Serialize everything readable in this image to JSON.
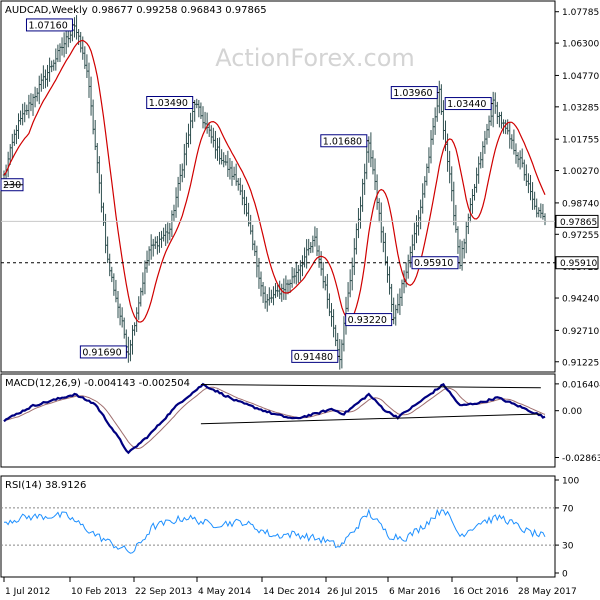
{
  "header": {
    "symbol": "AUDCAD,Weekly",
    "ohlc": "0.98677 0.99258 0.96843 0.97865"
  },
  "watermark": "ActionForex.com",
  "chart_data": [
    {
      "type": "ohlc",
      "title": "AUDCAD,Weekly 0.98677 0.99258 0.96843 0.97865",
      "y_ticks": [
        "1.07785",
        "1.06300",
        "1.04770",
        "1.03285",
        "1.01755",
        "1.00270",
        "0.98740",
        "0.97255",
        "0.95725",
        "0.94240",
        "0.92710",
        "0.91225"
      ],
      "ylim": [
        0.9093,
        1.0815
      ],
      "x_ticks": [
        "1 Jul 2012",
        "10 Feb 2013",
        "22 Sep 2013",
        "4 May 2014",
        "14 Dec 2014",
        "26 Jul 2015",
        "6 Mar 2016",
        "16 Oct 2016",
        "28 May 2017"
      ],
      "n_bars": 262,
      "anchors": [
        [
          0,
          1.0
        ],
        [
          6,
          1.023
        ],
        [
          18,
          1.044
        ],
        [
          34,
          1.0716
        ],
        [
          40,
          1.05
        ],
        [
          50,
          0.96
        ],
        [
          60,
          0.9169
        ],
        [
          70,
          0.965
        ],
        [
          80,
          0.975
        ],
        [
          92,
          1.0349
        ],
        [
          104,
          1.01
        ],
        [
          114,
          0.995
        ],
        [
          126,
          0.94
        ],
        [
          138,
          0.95
        ],
        [
          150,
          0.97
        ],
        [
          162,
          0.9148
        ],
        [
          176,
          1.0168
        ],
        [
          188,
          0.9322
        ],
        [
          200,
          0.98
        ],
        [
          210,
          1.0396
        ],
        [
          220,
          0.9591
        ],
        [
          228,
          1.0
        ],
        [
          236,
          1.0344
        ],
        [
          250,
          1.005
        ],
        [
          256,
          0.985
        ],
        [
          261,
          0.97865
        ]
      ],
      "moving_average": {
        "color": "#d00000"
      },
      "current_price": {
        "value": 0.97865,
        "label": "0.97865"
      },
      "support_line": {
        "value": 0.9591,
        "label": "0.95910",
        "style": "dashed"
      },
      "price_annotations": [
        {
          "label": "1.07160",
          "bar": 34,
          "value": 1.0716,
          "pos": "left"
        },
        {
          "label": "1.03490",
          "bar": 92,
          "value": 1.0349,
          "pos": "left"
        },
        {
          "label": "1.01680",
          "bar": 176,
          "value": 1.0168,
          "pos": "left"
        },
        {
          "label": "1.03960",
          "bar": 210,
          "value": 1.0396,
          "pos": "left"
        },
        {
          "label": "1.03440",
          "bar": 236,
          "value": 1.0344,
          "pos": "left"
        },
        {
          "label": "0.91690",
          "bar": 60,
          "value": 0.9169,
          "pos": "left"
        },
        {
          "label": "0.91480",
          "bar": 162,
          "value": 0.9148,
          "pos": "left"
        },
        {
          "label": "0.93220",
          "bar": 188,
          "value": 0.9322,
          "pos": "left"
        },
        {
          "label": "0.95910",
          "bar": 220,
          "value": 0.9591,
          "pos": "left"
        },
        {
          "label": "230",
          "bar": 0,
          "value": 0.996,
          "pos": "edge"
        }
      ]
    },
    {
      "type": "line",
      "title": "MACD(12,26,9) -0.004143 -0.002504",
      "y_ticks": [
        "0.016404",
        "0.00",
        "-0.028636"
      ],
      "ylim": [
        -0.032,
        0.02
      ],
      "anchors": [
        [
          0,
          -0.006
        ],
        [
          14,
          0.003
        ],
        [
          34,
          0.01
        ],
        [
          44,
          0.004
        ],
        [
          56,
          -0.018
        ],
        [
          60,
          -0.026
        ],
        [
          70,
          -0.015
        ],
        [
          84,
          0.004
        ],
        [
          96,
          0.016
        ],
        [
          112,
          0.006
        ],
        [
          130,
          -0.002
        ],
        [
          140,
          -0.005
        ],
        [
          150,
          -0.002
        ],
        [
          158,
          0.001
        ],
        [
          164,
          -0.002
        ],
        [
          176,
          0.01
        ],
        [
          184,
          0.0
        ],
        [
          190,
          -0.004
        ],
        [
          198,
          0.003
        ],
        [
          212,
          0.016
        ],
        [
          220,
          0.003
        ],
        [
          230,
          0.005
        ],
        [
          238,
          0.008
        ],
        [
          248,
          0.003
        ],
        [
          261,
          -0.004143
        ]
      ],
      "signal_color": "#a07070",
      "trendlines": [
        {
          "from": [
            95,
            0.016
          ],
          "to": [
            259,
            0.014
          ]
        },
        {
          "from": [
            95,
            -0.008
          ],
          "to": [
            259,
            -0.002
          ]
        }
      ]
    },
    {
      "type": "line",
      "title": "RSI(14) 38.9126",
      "y_ticks": [
        "100",
        "70",
        "30",
        "0"
      ],
      "ylim": [
        0,
        100
      ],
      "levels": [
        70,
        30
      ],
      "anchors": [
        [
          0,
          55
        ],
        [
          10,
          60
        ],
        [
          30,
          62
        ],
        [
          45,
          40
        ],
        [
          55,
          28
        ],
        [
          62,
          22
        ],
        [
          72,
          50
        ],
        [
          88,
          60
        ],
        [
          100,
          52
        ],
        [
          115,
          55
        ],
        [
          130,
          40
        ],
        [
          140,
          42
        ],
        [
          155,
          35
        ],
        [
          162,
          28
        ],
        [
          176,
          65
        ],
        [
          186,
          40
        ],
        [
          194,
          38
        ],
        [
          202,
          50
        ],
        [
          212,
          70
        ],
        [
          220,
          40
        ],
        [
          230,
          55
        ],
        [
          240,
          60
        ],
        [
          252,
          45
        ],
        [
          261,
          38.9126
        ]
      ]
    }
  ]
}
